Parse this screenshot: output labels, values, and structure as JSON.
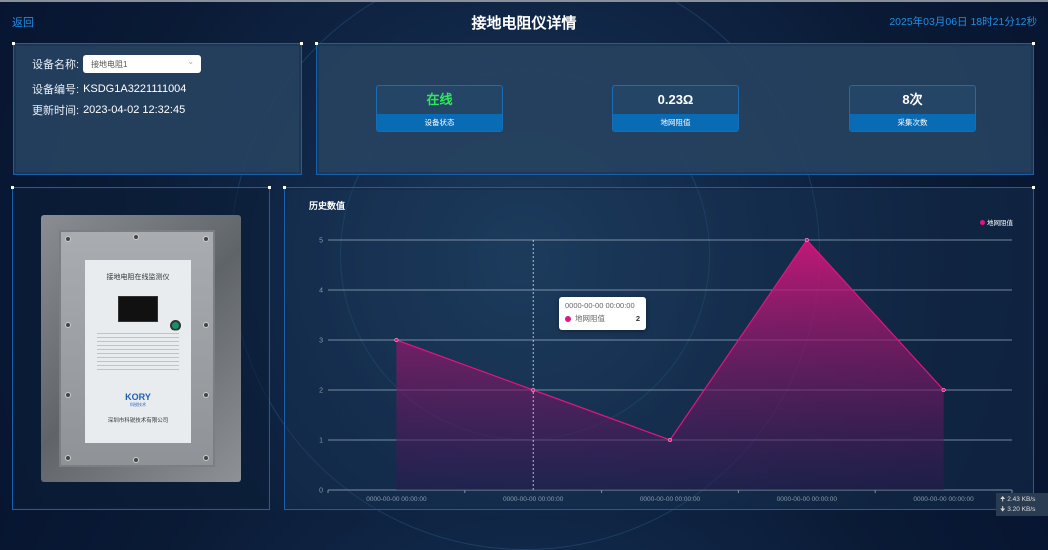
{
  "header": {
    "back_label": "返回",
    "title": "接地电阻仪详情",
    "datetime": "2025年03月06日 18时21分12秒"
  },
  "device": {
    "name_label": "设备名称:",
    "name_value": "接地电阻1",
    "code_label": "设备编号:",
    "code_value": "KSDG1A3221111004",
    "update_label": "更新时间:",
    "update_value": "2023-04-02 12:32:45"
  },
  "stats": [
    {
      "value": "在线",
      "label": "设备状态",
      "color": "#2ee85a"
    },
    {
      "value": "0.23Ω",
      "label": "地网阻值",
      "color": "#ffffff"
    },
    {
      "value": "8次",
      "label": "采集次数",
      "color": "#ffffff"
    }
  ],
  "photo": {
    "device_title": "接地电阻在线监测仪",
    "brand": "KORY",
    "brand_cn": "科锐技术",
    "company": "深圳市科锐技术有限公司"
  },
  "chart_data": {
    "type": "area",
    "title": "历史数值",
    "categories": [
      "0000-00-00 00:00:00",
      "0000-00-00 00:00:00",
      "0000-00-00 00:00:00",
      "0000-00-00 00:00:00",
      "0000-00-00 00:00:00"
    ],
    "series": [
      {
        "name": "地网阻值",
        "values": [
          3,
          2,
          1,
          5,
          2
        ],
        "color": "#e0157f"
      }
    ],
    "yticks": [
      "0",
      "1",
      "2",
      "3",
      "4",
      "5"
    ],
    "ylim": [
      0,
      5
    ],
    "grid": true,
    "legend": "top-right",
    "tooltip": {
      "title": "0000-00-00 00:00:00",
      "series": "地网阻值",
      "value": "2"
    }
  },
  "network": {
    "up": "2.43 KB/s",
    "down": "3.20 KB/s"
  }
}
